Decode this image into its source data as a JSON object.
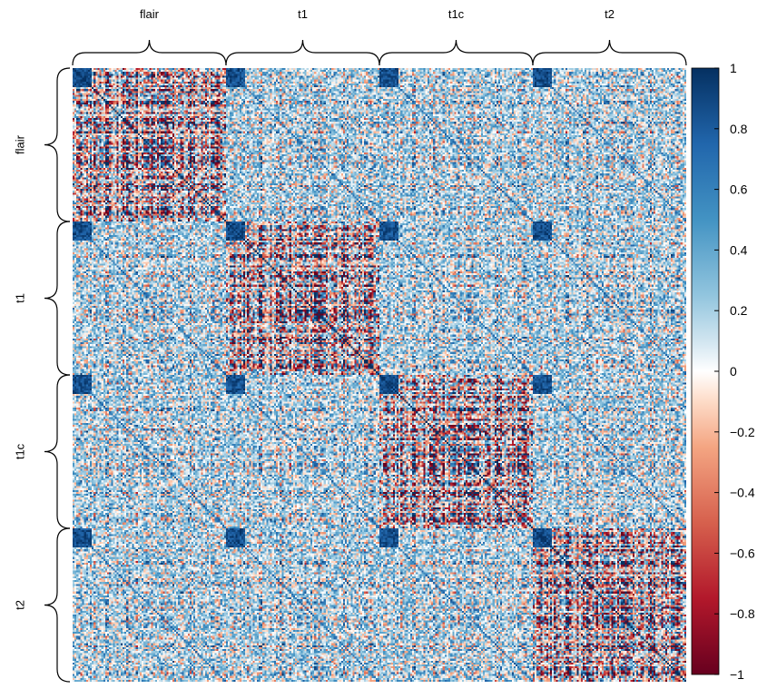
{
  "chart_data": {
    "type": "heatmap",
    "title": "",
    "xlabel": "",
    "ylabel": "",
    "groups": [
      "flair",
      "t1",
      "t1c",
      "t2"
    ],
    "features_per_group": 80,
    "colorbar": {
      "min": -1,
      "max": 1,
      "ticks": [
        1,
        0.8,
        0.6,
        0.4,
        0.2,
        0,
        -0.2,
        -0.4,
        -0.6,
        -0.8,
        -1
      ],
      "tick_labels": [
        "1",
        "0.8",
        "0.6",
        "0.4",
        "0.2",
        "0",
        "−0.2",
        "−0.4",
        "−0.6",
        "−0.8",
        "−1"
      ],
      "stops": [
        {
          "value": -1,
          "color": "#67001f"
        },
        {
          "value": -0.75,
          "color": "#b2182b"
        },
        {
          "value": -0.5,
          "color": "#d6604d"
        },
        {
          "value": -0.25,
          "color": "#f4a582"
        },
        {
          "value": -0.1,
          "color": "#fddbc7"
        },
        {
          "value": 0,
          "color": "#ffffff"
        },
        {
          "value": 0.1,
          "color": "#d1e5f0"
        },
        {
          "value": 0.25,
          "color": "#92c5de"
        },
        {
          "value": 0.5,
          "color": "#4393c3"
        },
        {
          "value": 0.75,
          "color": "#2166ac"
        },
        {
          "value": 1,
          "color": "#053061"
        }
      ]
    },
    "diagonal_value": 1,
    "within_group_block_range": [
      -1,
      1
    ],
    "between_group_typical_range": [
      -0.4,
      0.8
    ],
    "legend": "right"
  }
}
